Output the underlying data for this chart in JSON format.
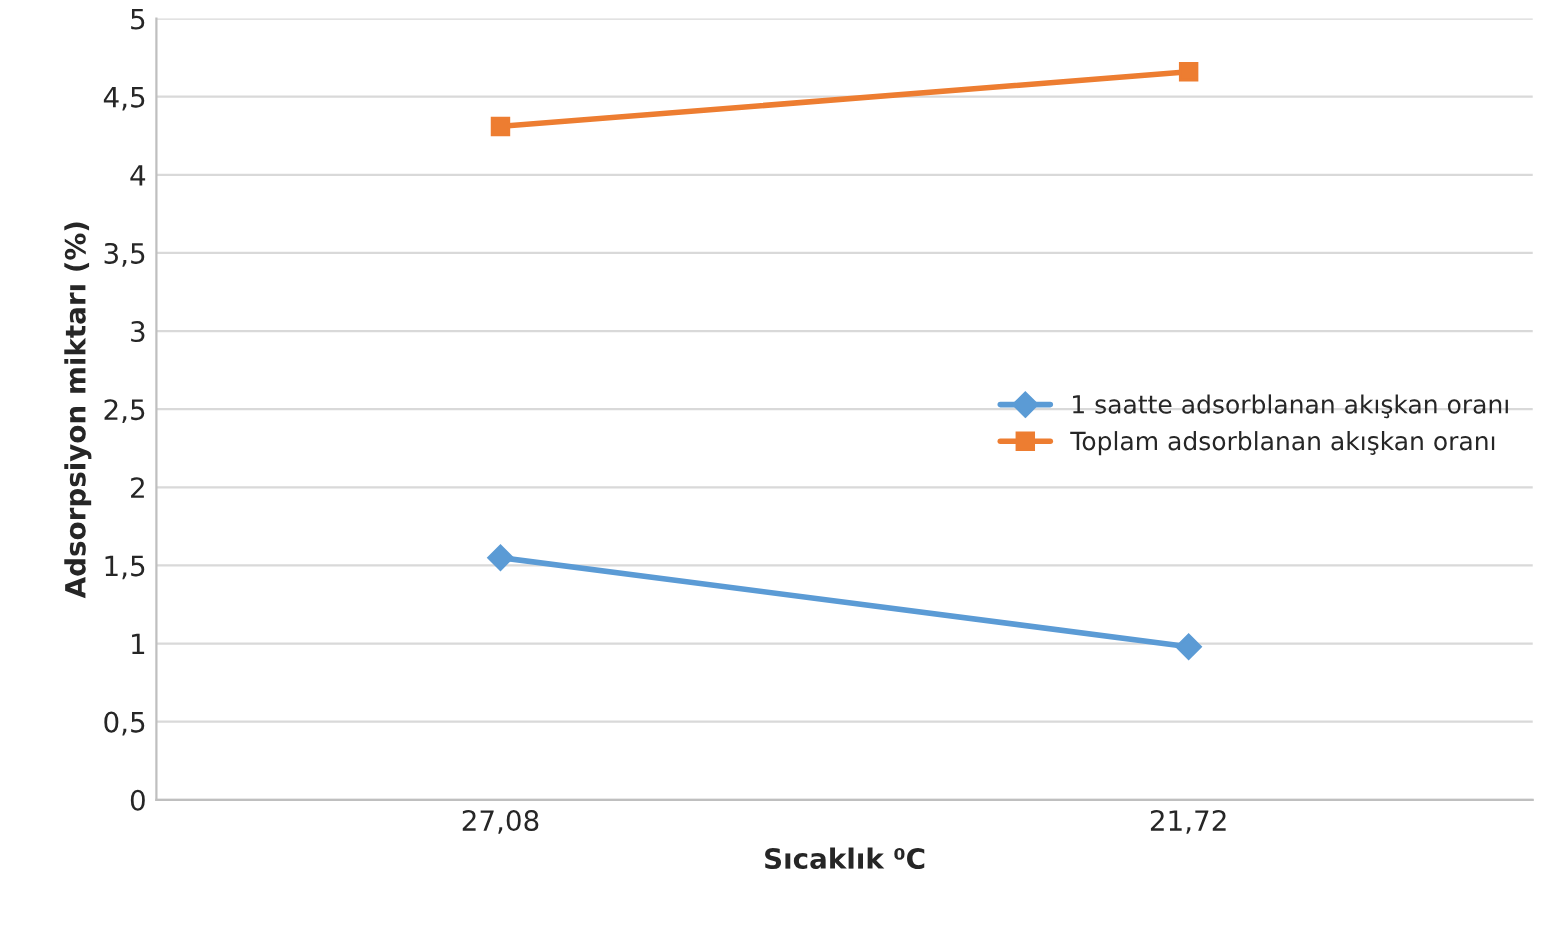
{
  "chart_data": {
    "type": "line",
    "xlabel": "Sıcaklık ⁰C",
    "ylabel": "Adsorpsiyon miktarı (%)",
    "x": [
      27.08,
      21.72
    ],
    "series": [
      {
        "name": "1 saatte adsorblanan akışkan oranı",
        "color": "#5b9bd5",
        "marker": "diamond",
        "values": [
          1.55,
          0.98
        ]
      },
      {
        "name": "Toplam adsorblanan akışkan oranı",
        "color": "#ed7d31",
        "marker": "square",
        "values": [
          4.31,
          4.66
        ]
      }
    ],
    "xlim": [
      29.76,
      19.04
    ],
    "xticks": [
      {
        "value": 27.08,
        "label": "27,08"
      },
      {
        "value": 21.72,
        "label": "21,72"
      }
    ],
    "ylim": [
      0,
      5
    ],
    "yticks": [
      0,
      {
        "value": 0.5,
        "label": "0,5"
      },
      1,
      {
        "value": 1.5,
        "label": "1,5"
      },
      2,
      {
        "value": 2.5,
        "label": "2,5"
      },
      3,
      {
        "value": 3.5,
        "label": "3,5"
      },
      4,
      {
        "value": 4.5,
        "label": "4,5"
      },
      5
    ],
    "grid": "y",
    "legend": "right",
    "line_style": "solid"
  }
}
